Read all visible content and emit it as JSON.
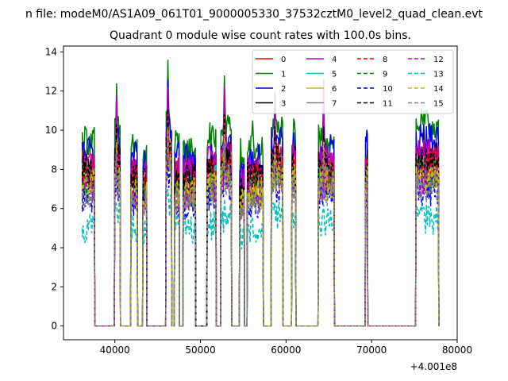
{
  "chart_data": {
    "type": "line",
    "suptitle": "n file: modeM0/AS1A09_061T01_9000005330_37532cztM0_level2_quad_clean.evt",
    "title": "Quadrant 0 module wise count rates with 100.0s bins.",
    "xlabel": "",
    "ylabel": "",
    "x_offset_label": "+4.001e8",
    "xlim": [
      34000,
      80000
    ],
    "ylim": [
      -0.7,
      14.3
    ],
    "xticks": [
      40000,
      50000,
      60000,
      70000,
      80000
    ],
    "xtick_labels": [
      "40000",
      "50000",
      "60000",
      "70000",
      "80000"
    ],
    "yticks": [
      0,
      2,
      4,
      6,
      8,
      10,
      12,
      14
    ],
    "ytick_labels": [
      "0",
      "2",
      "4",
      "6",
      "8",
      "10",
      "12",
      "14"
    ],
    "grid": false,
    "legend_position": "upper right",
    "legend_columns": 4,
    "segments": [
      [
        36200,
        37600
      ],
      [
        40000,
        40600
      ],
      [
        41900,
        42600
      ],
      [
        43300,
        43700
      ],
      [
        46000,
        46600
      ],
      [
        47000,
        47500
      ],
      [
        48000,
        49400
      ],
      [
        50800,
        51800
      ],
      [
        52400,
        53600
      ],
      [
        54600,
        55100
      ],
      [
        55500,
        57300
      ],
      [
        58300,
        59600
      ],
      [
        60700,
        61100
      ],
      [
        63800,
        65600
      ],
      [
        69300,
        69500
      ],
      [
        75200,
        77800
      ]
    ],
    "series": [
      {
        "name": "0",
        "color": "#ff0000",
        "dashed": false,
        "levels": [
          8.3,
          8.6,
          7.9,
          7.6,
          9.4,
          7.8,
          8.0,
          8.3,
          8.6,
          7.2,
          7.9,
          8.7,
          8.6,
          8.3,
          8.4,
          8.7
        ],
        "peaks": [
          0,
          10.8,
          0,
          0,
          11.3,
          0,
          0,
          0,
          11.0,
          0,
          0,
          10.2,
          9.1,
          10.4,
          8.4,
          0
        ]
      },
      {
        "name": "1",
        "color": "#008000",
        "dashed": false,
        "levels": [
          9.5,
          10.0,
          9.1,
          8.6,
          10.5,
          9.1,
          9.0,
          9.5,
          10.2,
          8.3,
          9.0,
          10.0,
          9.8,
          9.6,
          9.2,
          10.3
        ],
        "peaks": [
          10.1,
          12.4,
          9.8,
          9.0,
          13.6,
          10.0,
          0,
          10.4,
          12.8,
          9.6,
          10.5,
          12.0,
          9.3,
          12.3,
          9.4,
          11.0
        ]
      },
      {
        "name": "2",
        "color": "#0000ff",
        "dashed": false,
        "levels": [
          8.9,
          9.4,
          8.6,
          8.2,
          10.0,
          8.6,
          8.5,
          8.9,
          9.5,
          7.8,
          8.5,
          9.4,
          9.2,
          9.0,
          9.4,
          9.6
        ],
        "peaks": [
          0,
          11.5,
          0,
          0,
          12.6,
          0,
          0,
          0,
          12.0,
          0,
          0,
          11.3,
          9.3,
          11.4,
          9.4,
          10.3
        ]
      },
      {
        "name": "3",
        "color": "#000000",
        "dashed": false,
        "levels": [
          8.1,
          8.5,
          7.8,
          7.4,
          9.1,
          7.8,
          7.7,
          8.1,
          8.6,
          7.0,
          7.7,
          8.6,
          8.4,
          8.2,
          8.3,
          8.6
        ],
        "peaks": [
          0,
          10.9,
          0,
          0,
          11.6,
          0,
          0,
          0,
          11.2,
          0,
          0,
          10.6,
          9.0,
          10.6,
          8.3,
          9.9
        ]
      },
      {
        "name": "4",
        "color": "#bf00bf",
        "dashed": false,
        "levels": [
          8.4,
          8.8,
          8.0,
          7.7,
          9.4,
          8.1,
          8.0,
          8.4,
          9.0,
          7.3,
          8.0,
          8.9,
          8.6,
          8.5,
          8.5,
          8.8
        ],
        "peaks": [
          0,
          11.8,
          0,
          0,
          12.2,
          0,
          0,
          0,
          12.3,
          0,
          0,
          11.5,
          9.4,
          12.6,
          8.5,
          0
        ]
      },
      {
        "name": "5",
        "color": "#00bfbf",
        "dashed": false,
        "levels": [
          7.4,
          7.8,
          7.1,
          6.8,
          8.5,
          7.1,
          7.0,
          7.4,
          7.9,
          6.5,
          7.1,
          7.9,
          7.7,
          7.5,
          7.6,
          7.8
        ],
        "peaks": [
          0,
          9.6,
          0,
          0,
          10.4,
          0,
          0,
          0,
          10.1,
          0,
          0,
          9.6,
          8.3,
          9.6,
          7.6,
          0
        ]
      },
      {
        "name": "6",
        "color": "#bfbf00",
        "dashed": false,
        "levels": [
          7.0,
          7.4,
          6.7,
          6.4,
          8.0,
          6.7,
          6.6,
          7.0,
          7.5,
          6.1,
          6.7,
          7.5,
          7.3,
          7.1,
          7.2,
          7.4
        ],
        "peaks": [
          0,
          9.2,
          0,
          0,
          9.9,
          0,
          0,
          0,
          9.6,
          0,
          0,
          9.1,
          7.9,
          9.2,
          7.2,
          0
        ]
      },
      {
        "name": "7",
        "color": "#808080",
        "dashed": false,
        "levels": [
          7.6,
          8.0,
          7.3,
          7.0,
          8.7,
          7.3,
          7.2,
          7.6,
          8.1,
          6.6,
          7.3,
          8.1,
          7.9,
          7.7,
          7.8,
          8.0
        ],
        "peaks": [
          0,
          9.9,
          0,
          0,
          10.7,
          0,
          0,
          0,
          10.4,
          0,
          0,
          9.8,
          8.5,
          9.9,
          7.8,
          0
        ]
      },
      {
        "name": "8",
        "color": "#ff0000",
        "dashed": true,
        "levels": [
          7.8,
          8.2,
          7.5,
          7.2,
          8.9,
          7.5,
          7.4,
          7.8,
          8.3,
          6.8,
          7.5,
          8.3,
          8.1,
          7.9,
          8.0,
          8.2
        ],
        "peaks": [
          0,
          10.2,
          0,
          0,
          11.0,
          0,
          0,
          0,
          10.7,
          0,
          0,
          10.1,
          8.7,
          10.1,
          8.0,
          0
        ]
      },
      {
        "name": "9",
        "color": "#008000",
        "dashed": true,
        "levels": [
          7.3,
          7.7,
          7.0,
          6.7,
          8.3,
          7.0,
          6.9,
          7.3,
          7.8,
          6.4,
          7.0,
          7.8,
          7.6,
          7.4,
          7.5,
          7.7
        ],
        "peaks": [
          0,
          9.5,
          0,
          0,
          10.2,
          0,
          0,
          0,
          9.9,
          0,
          0,
          9.4,
          8.1,
          9.5,
          7.5,
          0
        ]
      },
      {
        "name": "10",
        "color": "#0000ff",
        "dashed": true,
        "levels": [
          6.5,
          7.0,
          6.4,
          6.1,
          7.6,
          6.3,
          6.2,
          6.6,
          7.1,
          5.8,
          6.3,
          7.0,
          6.8,
          6.7,
          6.7,
          6.9
        ],
        "peaks": [
          0,
          8.8,
          0,
          0,
          9.5,
          0,
          0,
          0,
          9.2,
          0,
          0,
          8.7,
          7.5,
          8.8,
          6.7,
          0
        ]
      },
      {
        "name": "11",
        "color": "#000000",
        "dashed": true,
        "levels": [
          7.9,
          8.3,
          7.6,
          7.3,
          9.0,
          7.6,
          7.5,
          7.9,
          8.4,
          6.9,
          7.6,
          8.4,
          8.2,
          8.0,
          8.1,
          8.3
        ],
        "peaks": [
          0,
          10.3,
          0,
          0,
          11.1,
          0,
          0,
          0,
          10.8,
          0,
          0,
          10.2,
          8.8,
          10.2,
          8.1,
          0
        ]
      },
      {
        "name": "12",
        "color": "#bf00bf",
        "dashed": true,
        "levels": [
          7.1,
          7.5,
          6.8,
          6.5,
          8.1,
          6.8,
          6.7,
          7.1,
          7.6,
          6.2,
          6.8,
          7.6,
          7.4,
          7.2,
          7.3,
          7.5
        ],
        "peaks": [
          0,
          9.3,
          0,
          0,
          10.0,
          0,
          0,
          0,
          9.7,
          0,
          0,
          9.2,
          8.0,
          9.3,
          7.3,
          0
        ]
      },
      {
        "name": "13",
        "color": "#00bfbf",
        "dashed": true,
        "levels": [
          5.0,
          5.8,
          5.0,
          4.9,
          6.2,
          5.0,
          4.8,
          5.1,
          5.5,
          4.6,
          5.0,
          5.6,
          5.5,
          5.2,
          5.3,
          5.4
        ],
        "peaks": [
          0,
          6.2,
          0,
          0,
          7.0,
          0,
          0,
          0,
          6.5,
          0,
          0,
          6.3,
          5.8,
          6.2,
          5.3,
          0
        ]
      },
      {
        "name": "14",
        "color": "#bfbf00",
        "dashed": true,
        "levels": [
          7.2,
          7.6,
          6.9,
          6.6,
          8.2,
          6.9,
          6.8,
          7.2,
          7.7,
          6.3,
          6.9,
          7.7,
          7.5,
          7.3,
          7.4,
          7.6
        ],
        "peaks": [
          0,
          9.4,
          0,
          0,
          10.1,
          0,
          0,
          0,
          9.8,
          0,
          0,
          9.3,
          8.0,
          9.4,
          7.4,
          0
        ]
      },
      {
        "name": "15",
        "color": "#808080",
        "dashed": true,
        "levels": [
          6.7,
          7.1,
          6.5,
          6.2,
          7.8,
          6.5,
          6.4,
          6.8,
          7.3,
          5.9,
          6.5,
          7.2,
          7.0,
          6.9,
          6.9,
          7.1
        ],
        "peaks": [
          0,
          8.9,
          0,
          0,
          9.6,
          0,
          0,
          0,
          9.3,
          0,
          0,
          8.8,
          7.6,
          8.9,
          6.9,
          0
        ]
      }
    ]
  }
}
